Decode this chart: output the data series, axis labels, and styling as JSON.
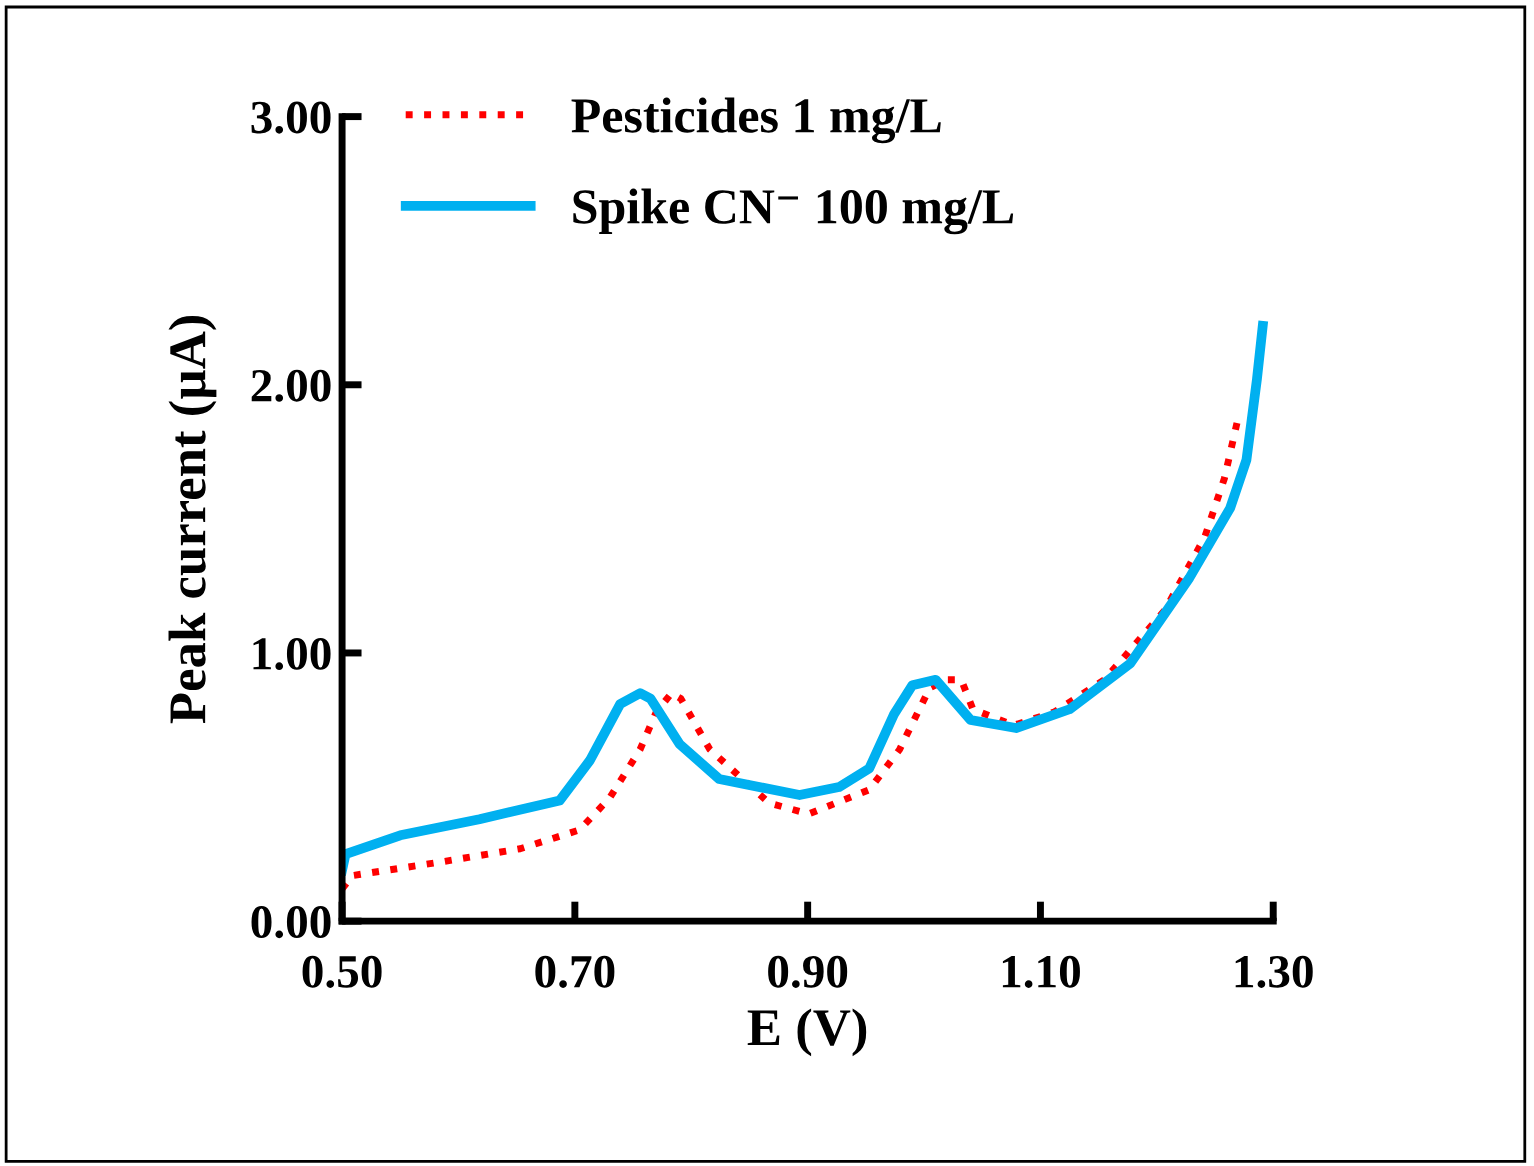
{
  "chart_data": {
    "type": "line",
    "xlabel": "E (V)",
    "ylabel": "Peak current (µA)",
    "xlim": [
      0.5,
      1.3
    ],
    "ylim": [
      0,
      3
    ],
    "xticks": [
      {
        "value": 0.5,
        "label": "0.50"
      },
      {
        "value": 0.7,
        "label": "0.70"
      },
      {
        "value": 0.9,
        "label": "0.90"
      },
      {
        "value": 1.1,
        "label": "1.10"
      },
      {
        "value": 1.3,
        "label": "1.30"
      }
    ],
    "yticks": [
      {
        "value": 0,
        "label": "0.00"
      },
      {
        "value": 1,
        "label": "1.00"
      },
      {
        "value": 2,
        "label": "2.00"
      },
      {
        "value": 3,
        "label": "3.00"
      }
    ],
    "grid": false,
    "legend": "top left",
    "marker": "none",
    "series": [
      {
        "name": "Pesticides 1 mg/L",
        "color": "#ff0000",
        "line_style": "dotted",
        "x": [
          0.5,
          0.509,
          0.584,
          0.653,
          0.704,
          0.73,
          0.756,
          0.77,
          0.783,
          0.791,
          0.816,
          0.867,
          0.901,
          0.953,
          0.979,
          1.005,
          1.019,
          1.032,
          1.042,
          1.077,
          1.112,
          1.155,
          1.207,
          1.241,
          1.258,
          1.269
        ],
        "values": [
          0.12,
          0.17,
          0.22,
          0.27,
          0.34,
          0.46,
          0.64,
          0.78,
          0.85,
          0.83,
          0.64,
          0.44,
          0.4,
          0.49,
          0.64,
          0.87,
          0.9,
          0.9,
          0.79,
          0.73,
          0.78,
          0.9,
          1.16,
          1.43,
          1.65,
          1.86
        ]
      },
      {
        "name": "Spike CN⁻ 100 mg/L",
        "color": "#00b0f0",
        "line_style": "solid",
        "x": [
          0.5,
          0.503,
          0.55,
          0.618,
          0.687,
          0.713,
          0.739,
          0.756,
          0.765,
          0.79,
          0.824,
          0.893,
          0.927,
          0.953,
          0.974,
          0.99,
          1.01,
          1.04,
          1.079,
          1.125,
          1.177,
          1.228,
          1.263,
          1.277,
          1.286,
          1.291
        ],
        "values": [
          0.19,
          0.25,
          0.32,
          0.38,
          0.45,
          0.6,
          0.81,
          0.85,
          0.83,
          0.66,
          0.53,
          0.47,
          0.5,
          0.57,
          0.77,
          0.88,
          0.9,
          0.75,
          0.72,
          0.79,
          0.96,
          1.28,
          1.54,
          1.72,
          2.02,
          2.22
        ]
      }
    ]
  }
}
